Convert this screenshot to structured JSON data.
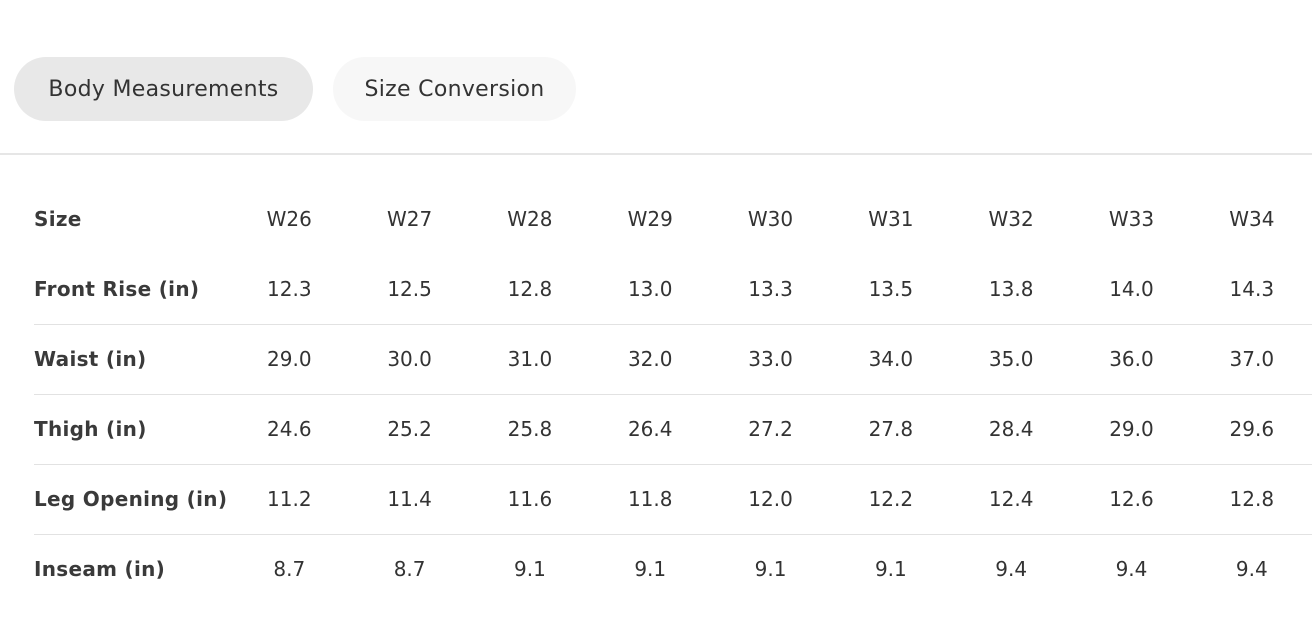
{
  "tabs": [
    {
      "label": "Body Measurements",
      "active": true
    },
    {
      "label": "Size Conversion",
      "active": false
    }
  ],
  "table": {
    "header_label": "Size",
    "columns": [
      "W26",
      "W27",
      "W28",
      "W29",
      "W30",
      "W31",
      "W32",
      "W33",
      "W34"
    ],
    "rows": [
      {
        "label": "Front Rise (in)",
        "values": [
          "12.3",
          "12.5",
          "12.8",
          "13.0",
          "13.3",
          "13.5",
          "13.8",
          "14.0",
          "14.3"
        ]
      },
      {
        "label": "Waist (in)",
        "values": [
          "29.0",
          "30.0",
          "31.0",
          "32.0",
          "33.0",
          "34.0",
          "35.0",
          "36.0",
          "37.0"
        ]
      },
      {
        "label": "Thigh (in)",
        "values": [
          "24.6",
          "25.2",
          "25.8",
          "26.4",
          "27.2",
          "27.8",
          "28.4",
          "29.0",
          "29.6"
        ]
      },
      {
        "label": "Leg Opening (in)",
        "values": [
          "11.2",
          "11.4",
          "11.6",
          "11.8",
          "12.0",
          "12.2",
          "12.4",
          "12.6",
          "12.8"
        ]
      },
      {
        "label": "Inseam (in)",
        "values": [
          "8.7",
          "8.7",
          "9.1",
          "9.1",
          "9.1",
          "9.1",
          "9.4",
          "9.4",
          "9.4"
        ]
      }
    ]
  }
}
